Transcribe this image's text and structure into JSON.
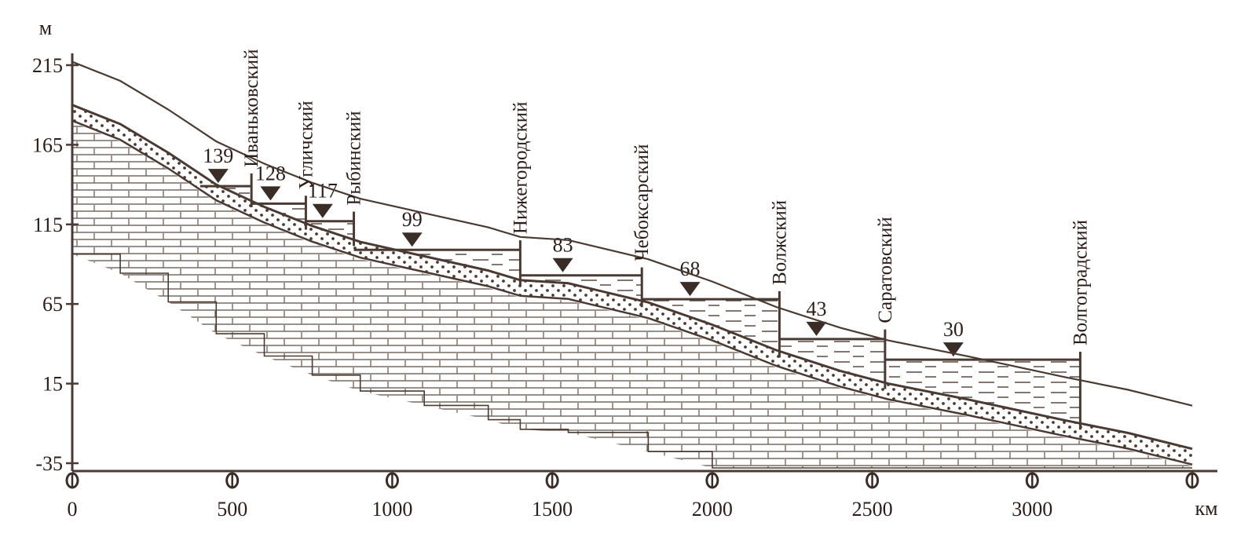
{
  "diagram": {
    "y_unit": "м",
    "x_unit": "км",
    "y_ticks": [
      {
        "value": 215,
        "label": "215"
      },
      {
        "value": 165,
        "label": "165"
      },
      {
        "value": 115,
        "label": "115"
      },
      {
        "value": 65,
        "label": "65"
      },
      {
        "value": 15,
        "label": "15"
      },
      {
        "value": -35,
        "label": "-35"
      }
    ],
    "x_ticks": [
      {
        "value": 0,
        "label": "0"
      },
      {
        "value": 500,
        "label": "500"
      },
      {
        "value": 1000,
        "label": "1000"
      },
      {
        "value": 1500,
        "label": "1500"
      },
      {
        "value": 2000,
        "label": "2000"
      },
      {
        "value": 2500,
        "label": "2500"
      },
      {
        "value": 3000,
        "label": "3000"
      }
    ],
    "x_end_mark_km": 3500,
    "y_axis_range": [
      -35,
      230
    ],
    "river_profile": [
      {
        "km": 0,
        "m": 190
      },
      {
        "km": 150,
        "m": 178
      },
      {
        "km": 300,
        "m": 160
      },
      {
        "km": 450,
        "m": 140
      },
      {
        "km": 600,
        "m": 126
      },
      {
        "km": 750,
        "m": 114
      },
      {
        "km": 900,
        "m": 104
      },
      {
        "km": 1100,
        "m": 95
      },
      {
        "km": 1300,
        "m": 86
      },
      {
        "km": 1400,
        "m": 80
      },
      {
        "km": 1550,
        "m": 78
      },
      {
        "km": 1800,
        "m": 66
      },
      {
        "km": 2000,
        "m": 52
      },
      {
        "km": 2200,
        "m": 36
      },
      {
        "km": 2400,
        "m": 23
      },
      {
        "km": 2550,
        "m": 15
      },
      {
        "km": 2800,
        "m": 5
      },
      {
        "km": 3100,
        "m": -8
      },
      {
        "km": 3300,
        "m": -16
      },
      {
        "km": 3500,
        "m": -26
      }
    ],
    "reservoirs": [
      {
        "level": 139,
        "label": "139",
        "start_km": 400,
        "end_km": 560
      },
      {
        "level": 128,
        "label": "128",
        "start_km": 560,
        "end_km": 730
      },
      {
        "level": 117,
        "label": "117",
        "start_km": 730,
        "end_km": 880
      },
      {
        "level": 99,
        "label": "99",
        "start_km": 880,
        "end_km": 1400
      },
      {
        "level": 83,
        "label": "83",
        "start_km": 1400,
        "end_km": 1780
      },
      {
        "level": 68,
        "label": "68",
        "start_km": 1780,
        "end_km": 2210
      },
      {
        "level": 43,
        "label": "43",
        "start_km": 2210,
        "end_km": 2540
      },
      {
        "level": 30,
        "label": "30",
        "start_km": 2540,
        "end_km": 3150
      }
    ],
    "dams": [
      {
        "name": "Иваньковский",
        "km": 560,
        "top": 147
      },
      {
        "name": "Угличский",
        "km": 730,
        "top": 133
      },
      {
        "name": "Рыбинский",
        "km": 880,
        "top": 123
      },
      {
        "name": "Нижегородский",
        "km": 1400,
        "top": 105
      },
      {
        "name": "Чебоксарский",
        "km": 1780,
        "top": 88
      },
      {
        "name": "Волжский",
        "km": 2210,
        "top": 73
      },
      {
        "name": "Саратовский",
        "km": 2540,
        "top": 49
      },
      {
        "name": "Волгоградский",
        "km": 3150,
        "top": 35
      }
    ]
  }
}
